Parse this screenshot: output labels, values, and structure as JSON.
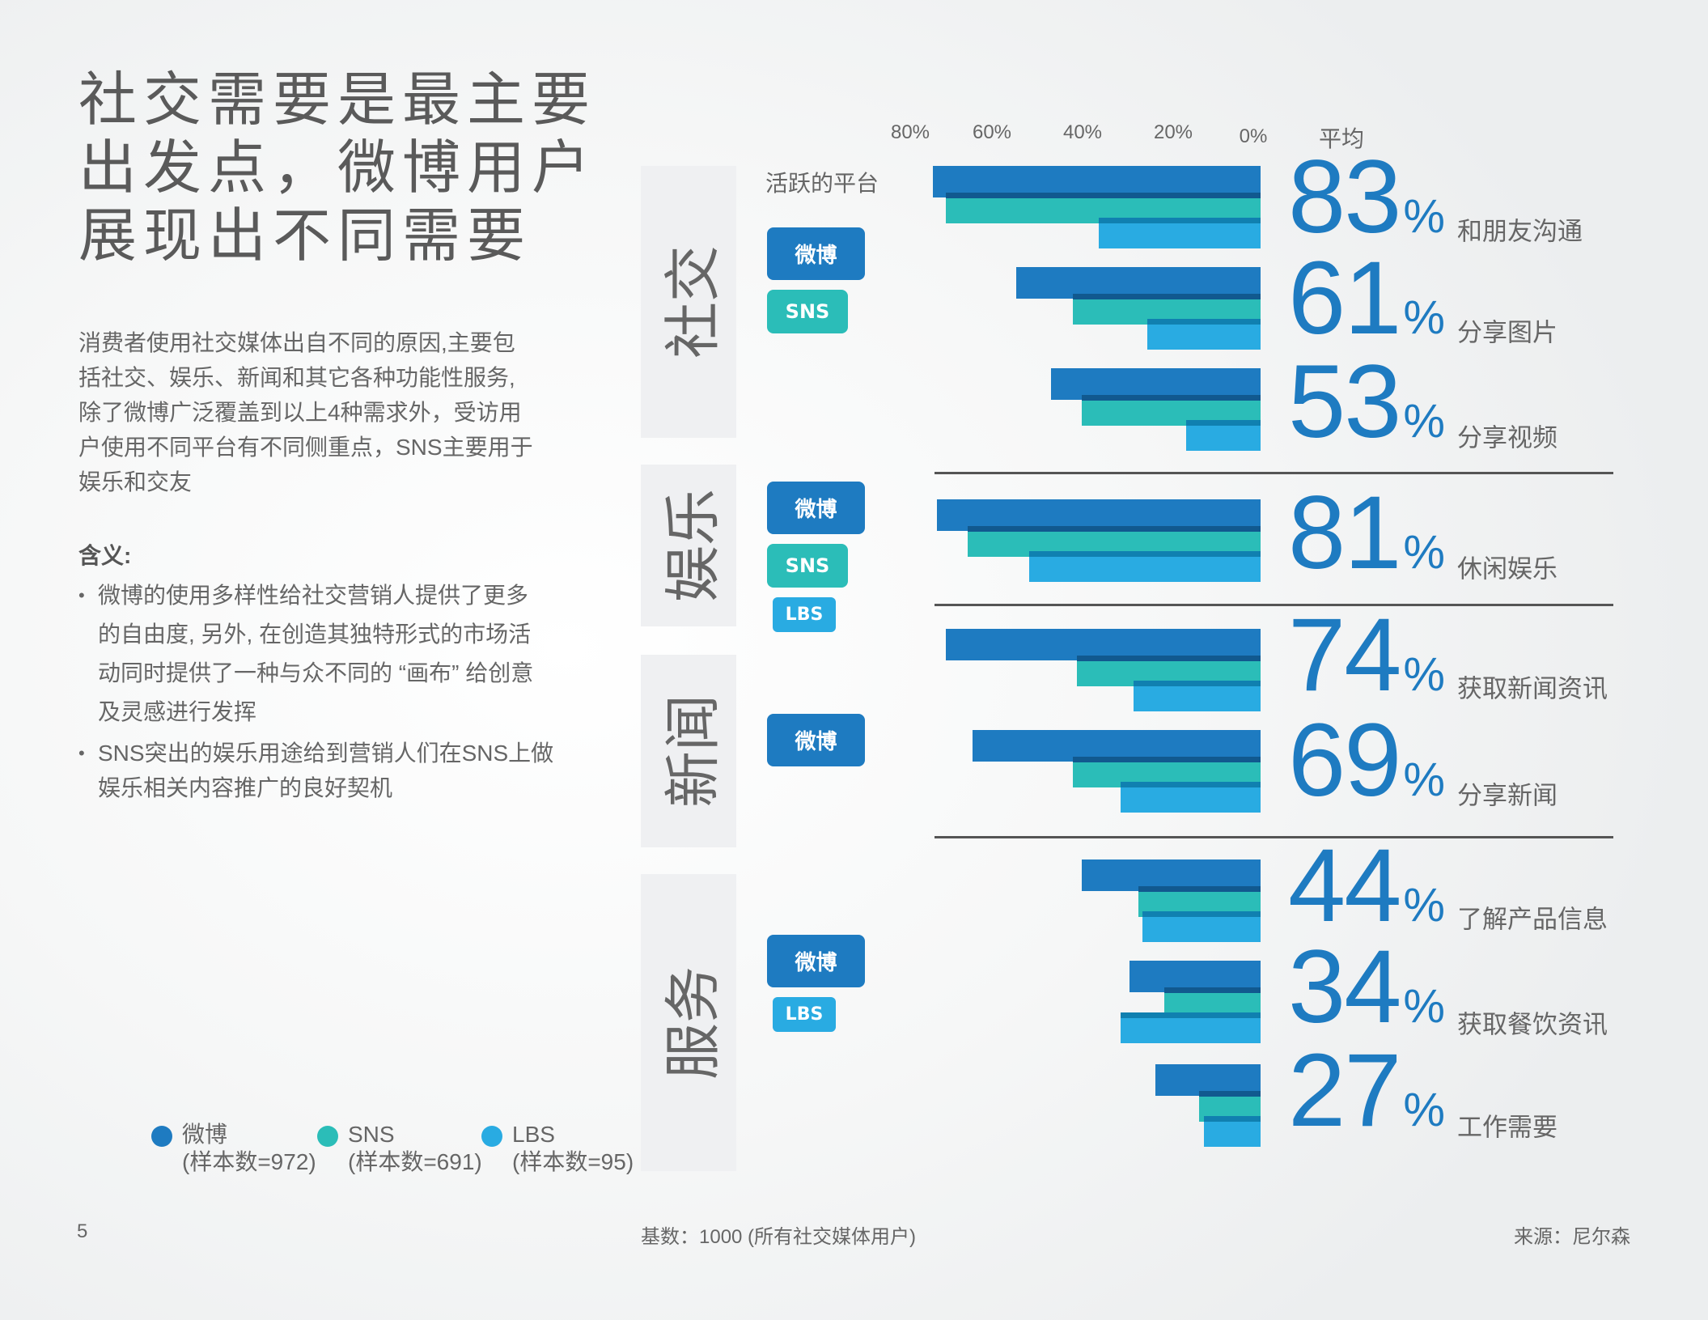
{
  "title_lines": [
    "社交需要是最主要",
    "出发点，微博用户",
    "展现出不同需要"
  ],
  "intro_lines": [
    "消费者使用社交媒体出自不同的原因,主要包",
    "括社交、娱乐、新闻和其它各种功能性服务,",
    "除了微博广泛覆盖到以上4种需求外，受访用",
    "户使用不同平台有不同侧重点，SNS主要用于",
    "娱乐和交友"
  ],
  "implications": {
    "heading": "含义:",
    "bullets": [
      [
        "微博的使用多样性给社交营销人提供了更多",
        "的自由度, 另外, 在创造其独特形式的市场活",
        "动同时提供了一种与众不同的 “画布” 给创意",
        "及灵感进行发挥"
      ],
      [
        "SNS突出的娱乐用途给到营销人们在SNS上做",
        "娱乐相关内容推广的良好契机"
      ]
    ]
  },
  "legend": [
    {
      "name": "微博",
      "sample": "(样本数=972)",
      "color": "#1e7bc1"
    },
    {
      "name": "SNS",
      "sample": "(样本数=691)",
      "color": "#2bbdb8"
    },
    {
      "name": "LBS",
      "sample": "(样本数=95)",
      "color": "#29abe2"
    }
  ],
  "footer": {
    "page": "5",
    "base": "基数：1000 (所有社交媒体用户)",
    "source": "来源：尼尔森"
  },
  "platform_heading": "活跃的平台",
  "categories": [
    {
      "name": "社交",
      "platforms": [
        "微博",
        "SNS"
      ]
    },
    {
      "name": "娱乐",
      "platforms": [
        "微博",
        "SNS",
        "LBS"
      ]
    },
    {
      "name": "新闻",
      "platforms": [
        "微博"
      ]
    },
    {
      "name": "服务",
      "platforms": [
        "微博",
        "LBS"
      ]
    }
  ],
  "chart_data": {
    "type": "bar",
    "orientation": "horizontal-reversed",
    "x_ticks": [
      "80%",
      "60%",
      "40%",
      "20%",
      "0%"
    ],
    "xlim": [
      0,
      80
    ],
    "average_heading": "平均",
    "series_colors": {
      "微博": "#1e7bc1",
      "SNS": "#2bbdb8",
      "LBS": "#29abe2"
    },
    "rows": [
      {
        "label": "和朋友沟通",
        "average": "83",
        "weibo": 75,
        "sns": 72,
        "lbs": 37
      },
      {
        "label": "分享图片",
        "average": "61",
        "weibo": 56,
        "sns": 43,
        "lbs": 26
      },
      {
        "label": "分享视频",
        "average": "53",
        "weibo": 48,
        "sns": 41,
        "lbs": 17
      },
      {
        "label": "休闲娱乐",
        "average": "81",
        "weibo": 74,
        "sns": 67,
        "lbs": 53
      },
      {
        "label": "获取新闻资讯",
        "average": "74",
        "weibo": 72,
        "sns": 42,
        "lbs": 29
      },
      {
        "label": "分享新闻",
        "average": "69",
        "weibo": 66,
        "sns": 43,
        "lbs": 32
      },
      {
        "label": "了解产品信息",
        "average": "44",
        "weibo": 41,
        "sns": 28,
        "lbs": 27
      },
      {
        "label": "获取餐饮资讯",
        "average": "34",
        "weibo": 30,
        "sns": 22,
        "lbs": 32
      },
      {
        "label": "工作需要",
        "average": "27",
        "weibo": 24,
        "sns": 14,
        "lbs": 13
      }
    ],
    "percent_sign": "%"
  }
}
